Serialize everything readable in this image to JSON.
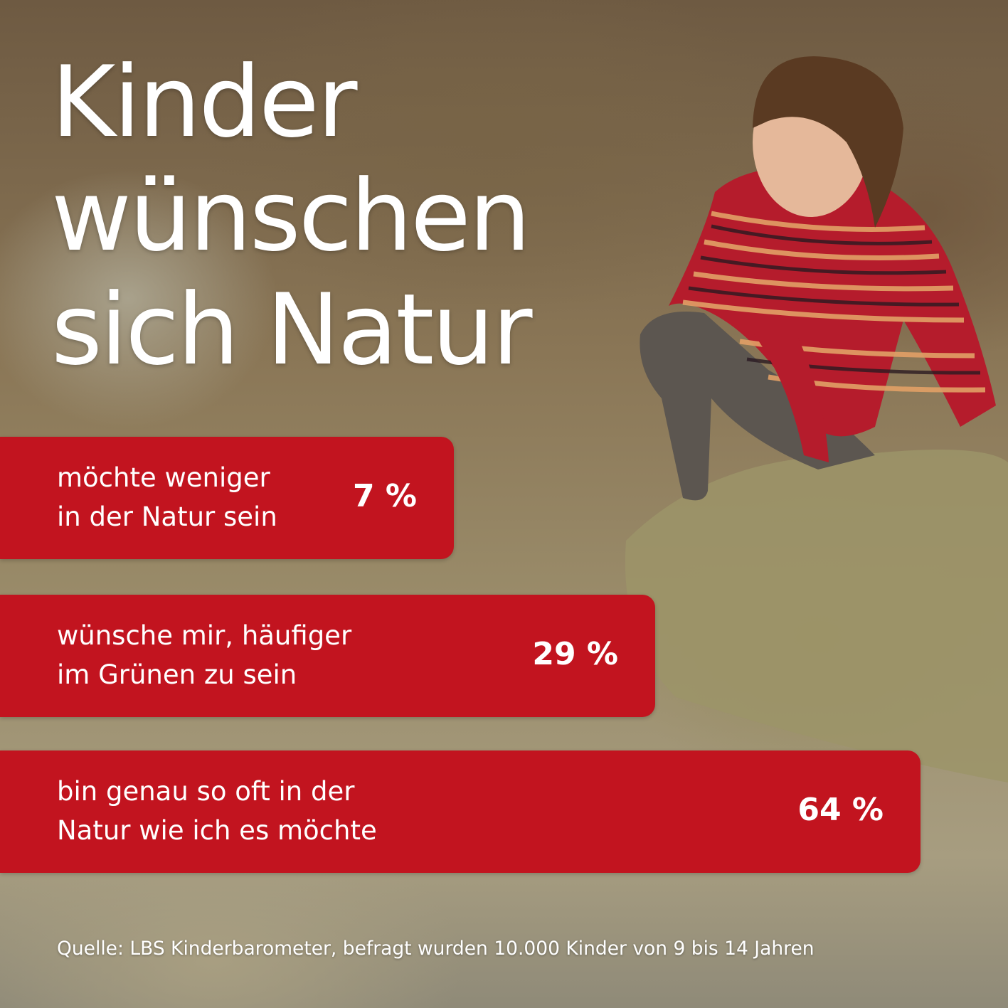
{
  "title": {
    "lines": [
      "Kinder",
      "wünschen",
      "sich Natur"
    ]
  },
  "chart_data": {
    "type": "bar",
    "orientation": "horizontal",
    "categories": [
      "möchte weniger in der Natur sein",
      "wünsche mir, häufiger im Grünen zu sein",
      "bin genau so oft in der Natur wie ich es möchte"
    ],
    "values": [
      7,
      29,
      64
    ],
    "value_labels": [
      "7 %",
      "29 %",
      "64 %"
    ],
    "label_lines": [
      [
        "möchte weniger",
        "in der Natur sein"
      ],
      [
        "wünsche mir, häufiger",
        "im Grünen zu sein"
      ],
      [
        "bin genau so oft in der",
        "Natur wie ich es möchte"
      ]
    ],
    "unit": "%",
    "bar_color": "#c2141f"
  },
  "source": "Quelle: LBS Kinderbarometer, befragt wurden 10.000 Kinder von 9 bis 14 Jahren"
}
